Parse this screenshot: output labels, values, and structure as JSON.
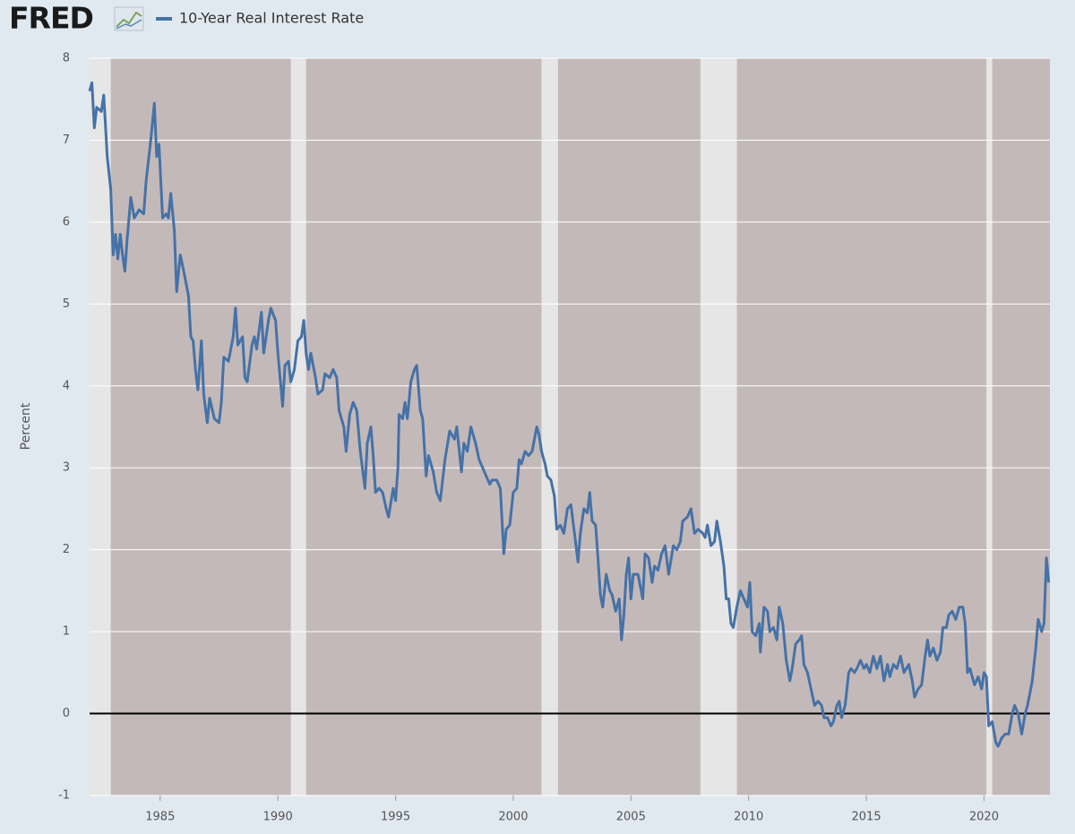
{
  "chart_data": {
    "type": "line",
    "logo": "FRED",
    "ylabel": "Percent",
    "ylim": [
      -1,
      8
    ],
    "yticks": [
      -1,
      0,
      1,
      2,
      3,
      4,
      5,
      6,
      7,
      8
    ],
    "xlim": [
      1982.0,
      2022.8
    ],
    "xticks": [
      1985,
      1990,
      1995,
      2000,
      2005,
      2010,
      2015,
      2020
    ],
    "grid": true,
    "zero_line": true,
    "recessions": [
      [
        1982.0,
        1982.9
      ],
      [
        1990.55,
        1991.2
      ],
      [
        2001.2,
        2001.9
      ],
      [
        2007.95,
        2009.5
      ],
      [
        2020.1,
        2020.35
      ]
    ],
    "x": [
      1982.0,
      1982.1,
      1982.2,
      1982.3,
      1982.5,
      1982.6,
      1982.75,
      1982.9,
      1983.0,
      1983.1,
      1983.2,
      1983.3,
      1983.4,
      1983.5,
      1983.6,
      1983.75,
      1983.9,
      1984.1,
      1984.3,
      1984.4,
      1984.6,
      1984.75,
      1984.85,
      1984.95,
      1985.1,
      1985.25,
      1985.35,
      1985.45,
      1985.6,
      1985.7,
      1985.85,
      1986.0,
      1986.2,
      1986.3,
      1986.4,
      1986.5,
      1986.6,
      1986.75,
      1986.85,
      1987.0,
      1987.1,
      1987.3,
      1987.5,
      1987.6,
      1987.7,
      1987.9,
      1988.1,
      1988.2,
      1988.3,
      1988.5,
      1988.6,
      1988.7,
      1988.9,
      1989.0,
      1989.1,
      1989.3,
      1989.4,
      1989.6,
      1989.7,
      1989.9,
      1990.0,
      1990.2,
      1990.3,
      1990.45,
      1990.55,
      1990.7,
      1990.85,
      1991.0,
      1991.1,
      1991.2,
      1991.3,
      1991.4,
      1991.6,
      1991.7,
      1991.9,
      1992.0,
      1992.2,
      1992.35,
      1992.5,
      1992.6,
      1992.8,
      1992.9,
      1993.05,
      1993.2,
      1993.35,
      1993.5,
      1993.7,
      1993.8,
      1993.95,
      1994.05,
      1994.15,
      1994.3,
      1994.45,
      1994.6,
      1994.7,
      1994.9,
      1995.0,
      1995.1,
      1995.15,
      1995.3,
      1995.4,
      1995.5,
      1995.65,
      1995.8,
      1995.9,
      1996.05,
      1996.15,
      1996.3,
      1996.4,
      1996.6,
      1996.75,
      1996.9,
      1997.1,
      1997.3,
      1997.5,
      1997.6,
      1997.8,
      1997.9,
      1998.05,
      1998.2,
      1998.4,
      1998.55,
      1998.7,
      1998.85,
      1999.0,
      1999.1,
      1999.3,
      1999.45,
      1999.6,
      1999.7,
      1999.85,
      2000.0,
      2000.15,
      2000.25,
      2000.35,
      2000.5,
      2000.65,
      2000.8,
      2000.9,
      2001.0,
      2001.1,
      2001.2,
      2001.35,
      2001.45,
      2001.6,
      2001.75,
      2001.85,
      2002.0,
      2002.15,
      2002.3,
      2002.45,
      2002.6,
      2002.75,
      2002.85,
      2003.0,
      2003.15,
      2003.25,
      2003.35,
      2003.5,
      2003.6,
      2003.7,
      2003.8,
      2003.95,
      2004.1,
      2004.2,
      2004.35,
      2004.5,
      2004.6,
      2004.7,
      2004.8,
      2004.9,
      2005.0,
      2005.1,
      2005.3,
      2005.5,
      2005.6,
      2005.75,
      2005.9,
      2006.0,
      2006.15,
      2006.3,
      2006.45,
      2006.6,
      2006.8,
      2006.95,
      2007.1,
      2007.2,
      2007.4,
      2007.55,
      2007.7,
      2007.85,
      2008.05,
      2008.15,
      2008.25,
      2008.4,
      2008.55,
      2008.65,
      2008.8,
      2008.95,
      2009.05,
      2009.15,
      2009.25,
      2009.35,
      2009.5,
      2009.65,
      2009.8,
      2009.95,
      2010.05,
      2010.15,
      2010.3,
      2010.45,
      2010.5,
      2010.65,
      2010.8,
      2010.9,
      2011.05,
      2011.2,
      2011.3,
      2011.45,
      2011.6,
      2011.75,
      2011.85,
      2012.0,
      2012.15,
      2012.25,
      2012.35,
      2012.5,
      2012.65,
      2012.8,
      2012.95,
      2013.1,
      2013.2,
      2013.35,
      2013.5,
      2013.6,
      2013.75,
      2013.85,
      2013.95,
      2014.1,
      2014.25,
      2014.35,
      2014.5,
      2014.6,
      2014.75,
      2014.9,
      2015.0,
      2015.15,
      2015.3,
      2015.45,
      2015.6,
      2015.75,
      2015.9,
      2016.0,
      2016.15,
      2016.3,
      2016.45,
      2016.6,
      2016.8,
      2016.95,
      2017.05,
      2017.2,
      2017.35,
      2017.5,
      2017.6,
      2017.7,
      2017.85,
      2018.0,
      2018.15,
      2018.25,
      2018.4,
      2018.5,
      2018.65,
      2018.8,
      2018.95,
      2019.1,
      2019.2,
      2019.3,
      2019.4,
      2019.5,
      2019.6,
      2019.75,
      2019.9,
      2020.0,
      2020.1,
      2020.2,
      2020.35,
      2020.5,
      2020.6,
      2020.75,
      2020.9,
      2021.05,
      2021.2,
      2021.3,
      2021.45,
      2021.6,
      2021.75,
      2021.85,
      2021.95,
      2022.05,
      2022.2,
      2022.3,
      2022.45,
      2022.55,
      2022.65,
      2022.75
    ],
    "series": [
      {
        "name": "10-Year Real Interest Rate",
        "color": "#4572a7",
        "values": [
          7.6,
          7.7,
          7.15,
          7.4,
          7.35,
          7.55,
          6.8,
          6.4,
          5.6,
          5.85,
          5.55,
          5.85,
          5.6,
          5.4,
          5.8,
          6.3,
          6.05,
          6.15,
          6.1,
          6.5,
          7.0,
          7.45,
          6.8,
          6.95,
          6.05,
          6.1,
          6.05,
          6.35,
          5.9,
          5.15,
          5.6,
          5.4,
          5.1,
          4.6,
          4.55,
          4.2,
          3.95,
          4.55,
          3.9,
          3.55,
          3.85,
          3.6,
          3.55,
          3.8,
          4.35,
          4.3,
          4.6,
          4.95,
          4.5,
          4.6,
          4.1,
          4.05,
          4.5,
          4.6,
          4.45,
          4.9,
          4.4,
          4.8,
          4.95,
          4.8,
          4.4,
          3.75,
          4.25,
          4.3,
          4.05,
          4.2,
          4.55,
          4.6,
          4.8,
          4.4,
          4.2,
          4.4,
          4.1,
          3.9,
          3.95,
          4.15,
          4.1,
          4.2,
          4.1,
          3.7,
          3.5,
          3.2,
          3.65,
          3.8,
          3.7,
          3.2,
          2.75,
          3.3,
          3.5,
          3.15,
          2.7,
          2.75,
          2.7,
          2.5,
          2.4,
          2.75,
          2.6,
          3.0,
          3.65,
          3.6,
          3.8,
          3.6,
          4.05,
          4.2,
          4.25,
          3.7,
          3.6,
          2.9,
          3.15,
          2.95,
          2.7,
          2.6,
          3.1,
          3.45,
          3.35,
          3.5,
          2.95,
          3.3,
          3.2,
          3.5,
          3.3,
          3.1,
          3.0,
          2.9,
          2.8,
          2.85,
          2.85,
          2.75,
          1.95,
          2.25,
          2.3,
          2.7,
          2.75,
          3.1,
          3.05,
          3.2,
          3.15,
          3.2,
          3.35,
          3.5,
          3.4,
          3.2,
          3.05,
          2.9,
          2.85,
          2.65,
          2.25,
          2.3,
          2.2,
          2.5,
          2.55,
          2.2,
          1.85,
          2.2,
          2.5,
          2.45,
          2.7,
          2.35,
          2.3,
          1.9,
          1.45,
          1.3,
          1.7,
          1.5,
          1.45,
          1.25,
          1.4,
          0.9,
          1.2,
          1.7,
          1.9,
          1.4,
          1.7,
          1.7,
          1.4,
          1.95,
          1.9,
          1.6,
          1.8,
          1.75,
          1.95,
          2.05,
          1.7,
          2.05,
          2.0,
          2.1,
          2.35,
          2.4,
          2.5,
          2.2,
          2.25,
          2.2,
          2.15,
          2.3,
          2.05,
          2.1,
          2.35,
          2.1,
          1.8,
          1.4,
          1.4,
          1.1,
          1.05,
          1.3,
          1.5,
          1.4,
          1.3,
          1.6,
          1.0,
          0.95,
          1.1,
          0.75,
          1.3,
          1.25,
          1.0,
          1.05,
          0.9,
          1.3,
          1.1,
          0.65,
          0.4,
          0.55,
          0.85,
          0.9,
          0.95,
          0.6,
          0.5,
          0.3,
          0.1,
          0.15,
          0.1,
          -0.05,
          -0.05,
          -0.15,
          -0.1,
          0.1,
          0.15,
          -0.05,
          0.1,
          0.5,
          0.55,
          0.5,
          0.55,
          0.65,
          0.55,
          0.6,
          0.5,
          0.7,
          0.55,
          0.7,
          0.4,
          0.6,
          0.45,
          0.6,
          0.55,
          0.7,
          0.5,
          0.6,
          0.4,
          0.2,
          0.3,
          0.35,
          0.7,
          0.9,
          0.7,
          0.8,
          0.65,
          0.75,
          1.05,
          1.05,
          1.2,
          1.25,
          1.15,
          1.3,
          1.3,
          1.1,
          0.5,
          0.55,
          0.45,
          0.35,
          0.45,
          0.3,
          0.5,
          0.45,
          -0.15,
          -0.1,
          -0.35,
          -0.4,
          -0.3,
          -0.25,
          -0.25,
          0.0,
          0.1,
          0.0,
          -0.25,
          0.0,
          0.1,
          0.25,
          0.4,
          0.8,
          1.15,
          1.0,
          1.1,
          1.9,
          1.6
        ]
      }
    ]
  }
}
